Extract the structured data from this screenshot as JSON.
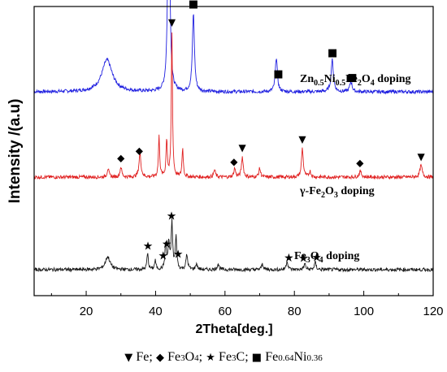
{
  "chart_data": {
    "type": "line",
    "xlabel": "2Theta[deg.]",
    "ylabel": "Intensity /(a.u)",
    "xlim": [
      5,
      120
    ],
    "xticks": [
      20,
      40,
      60,
      80,
      100,
      120
    ],
    "grid": false,
    "series": [
      {
        "name": "Zn0.5Ni0.5Fe2O4 doping",
        "label": {
          "base": "Zn",
          "parts": [
            [
              "0.5",
              "sub"
            ],
            [
              "Ni",
              "base"
            ],
            [
              "0.5",
              "sub"
            ],
            [
              "Fe",
              "base"
            ],
            [
              "2",
              "sub"
            ],
            [
              "O",
              "base"
            ],
            [
              "4",
              "sub"
            ],
            [
              " doping",
              "base"
            ]
          ]
        },
        "color": "#1f1fe0",
        "baseline": 0.705,
        "peaks": [
          {
            "x": 26.0,
            "h": 0.11,
            "w": 1.8
          },
          {
            "x": 43.8,
            "h": 0.88,
            "w": 0.32
          },
          {
            "x": 50.9,
            "h": 0.27,
            "w": 0.35
          },
          {
            "x": 74.8,
            "h": 0.12,
            "w": 0.35
          },
          {
            "x": 90.9,
            "h": 0.11,
            "w": 0.4
          },
          {
            "x": 96.3,
            "h": 0.035,
            "w": 0.4
          }
        ],
        "markers": [
          {
            "x": 43.8,
            "symbol": "square"
          },
          {
            "x": 50.9,
            "symbol": "square"
          },
          {
            "x": 75.4,
            "symbol": "square"
          },
          {
            "x": 91.0,
            "symbol": "square"
          },
          {
            "x": 96.7,
            "symbol": "square"
          }
        ]
      },
      {
        "name": "γ-Fe2O3 doping",
        "label": {
          "base": "γ-Fe",
          "parts": [
            [
              "2",
              "sub"
            ],
            [
              "O",
              "base"
            ],
            [
              "3",
              "sub"
            ],
            [
              " doping",
              "base"
            ]
          ]
        },
        "color": "#e02020",
        "baseline": 0.41,
        "peaks": [
          {
            "x": 26.3,
            "h": 0.03,
            "w": 0.3
          },
          {
            "x": 30.0,
            "h": 0.035,
            "w": 0.3
          },
          {
            "x": 35.5,
            "h": 0.08,
            "w": 0.35
          },
          {
            "x": 41.0,
            "h": 0.14,
            "w": 0.22
          },
          {
            "x": 43.2,
            "h": 0.13,
            "w": 0.22
          },
          {
            "x": 44.7,
            "h": 0.5,
            "w": 0.2
          },
          {
            "x": 47.8,
            "h": 0.1,
            "w": 0.22
          },
          {
            "x": 57.0,
            "h": 0.025,
            "w": 0.3
          },
          {
            "x": 62.8,
            "h": 0.03,
            "w": 0.3
          },
          {
            "x": 65.0,
            "h": 0.07,
            "w": 0.3
          },
          {
            "x": 70.0,
            "h": 0.03,
            "w": 0.3
          },
          {
            "x": 82.3,
            "h": 0.1,
            "w": 0.3
          },
          {
            "x": 84.5,
            "h": 0.02,
            "w": 0.3
          },
          {
            "x": 99.0,
            "h": 0.02,
            "w": 0.4
          },
          {
            "x": 116.5,
            "h": 0.04,
            "w": 0.4
          }
        ],
        "markers": [
          {
            "x": 30.0,
            "symbol": "diamond"
          },
          {
            "x": 35.3,
            "symbol": "diamond"
          },
          {
            "x": 44.7,
            "symbol": "triangle-down"
          },
          {
            "x": 62.6,
            "symbol": "diamond"
          },
          {
            "x": 65.0,
            "symbol": "triangle-down"
          },
          {
            "x": 82.3,
            "symbol": "triangle-down"
          },
          {
            "x": 98.9,
            "symbol": "diamond"
          },
          {
            "x": 116.5,
            "symbol": "triangle-down"
          }
        ]
      },
      {
        "name": "Fe3O4 doping",
        "label": {
          "base": "Fe",
          "parts": [
            [
              "3",
              "sub"
            ],
            [
              "O",
              "base"
            ],
            [
              "4",
              "sub"
            ],
            [
              " doping",
              "base"
            ]
          ]
        },
        "color": "#1a1a1a",
        "baseline": 0.09,
        "peaks": [
          {
            "x": 26.2,
            "h": 0.045,
            "w": 0.8
          },
          {
            "x": 37.7,
            "h": 0.055,
            "w": 0.25
          },
          {
            "x": 39.9,
            "h": 0.03,
            "w": 0.25
          },
          {
            "x": 42.9,
            "h": 0.09,
            "w": 0.25
          },
          {
            "x": 43.8,
            "h": 0.09,
            "w": 0.25
          },
          {
            "x": 44.7,
            "h": 0.16,
            "w": 0.25
          },
          {
            "x": 45.9,
            "h": 0.11,
            "w": 0.25
          },
          {
            "x": 49.0,
            "h": 0.05,
            "w": 0.3
          },
          {
            "x": 51.8,
            "h": 0.02,
            "w": 0.3
          },
          {
            "x": 58.0,
            "h": 0.02,
            "w": 0.3
          },
          {
            "x": 70.8,
            "h": 0.02,
            "w": 0.3
          },
          {
            "x": 77.9,
            "h": 0.03,
            "w": 0.3
          },
          {
            "x": 83.0,
            "h": 0.02,
            "w": 0.3
          },
          {
            "x": 86.0,
            "h": 0.025,
            "w": 0.3
          }
        ],
        "markers": [
          {
            "x": 37.8,
            "symbol": "star"
          },
          {
            "x": 42.2,
            "symbol": "star"
          },
          {
            "x": 43.2,
            "symbol": "star"
          },
          {
            "x": 44.6,
            "symbol": "star"
          },
          {
            "x": 46.5,
            "symbol": "star"
          },
          {
            "x": 78.4,
            "symbol": "star"
          },
          {
            "x": 82.6,
            "symbol": "star"
          },
          {
            "x": 86.4,
            "symbol": "star"
          }
        ]
      }
    ],
    "legend": {
      "placement": "bottom",
      "entries": [
        {
          "symbol": "triangle-down",
          "glyph": "▼",
          "label": "Fe;"
        },
        {
          "symbol": "diamond",
          "glyph": "◆",
          "label": "Fe3O4;",
          "parts": [
            [
              "Fe",
              "base"
            ],
            [
              "3",
              "sub-soft"
            ],
            [
              "O",
              "base"
            ],
            [
              "4",
              "sub-soft"
            ],
            [
              ";",
              "base"
            ]
          ]
        },
        {
          "symbol": "star",
          "glyph": "★",
          "label": "Fe3C;",
          "parts": [
            [
              "Fe",
              "base"
            ],
            [
              "3",
              "sub-soft"
            ],
            [
              "C;",
              "base"
            ]
          ]
        },
        {
          "symbol": "square",
          "glyph": "■",
          "label": "Fe0.64Ni0.36",
          "parts": [
            [
              "Fe",
              "base"
            ],
            [
              "0.64",
              "sub-soft"
            ],
            [
              "Ni",
              "base"
            ],
            [
              "0.36",
              "sub-soft"
            ]
          ]
        }
      ]
    }
  },
  "glyphs": {
    "square": "■",
    "diamond": "◆",
    "triangle-down": "▼",
    "star": "★"
  }
}
